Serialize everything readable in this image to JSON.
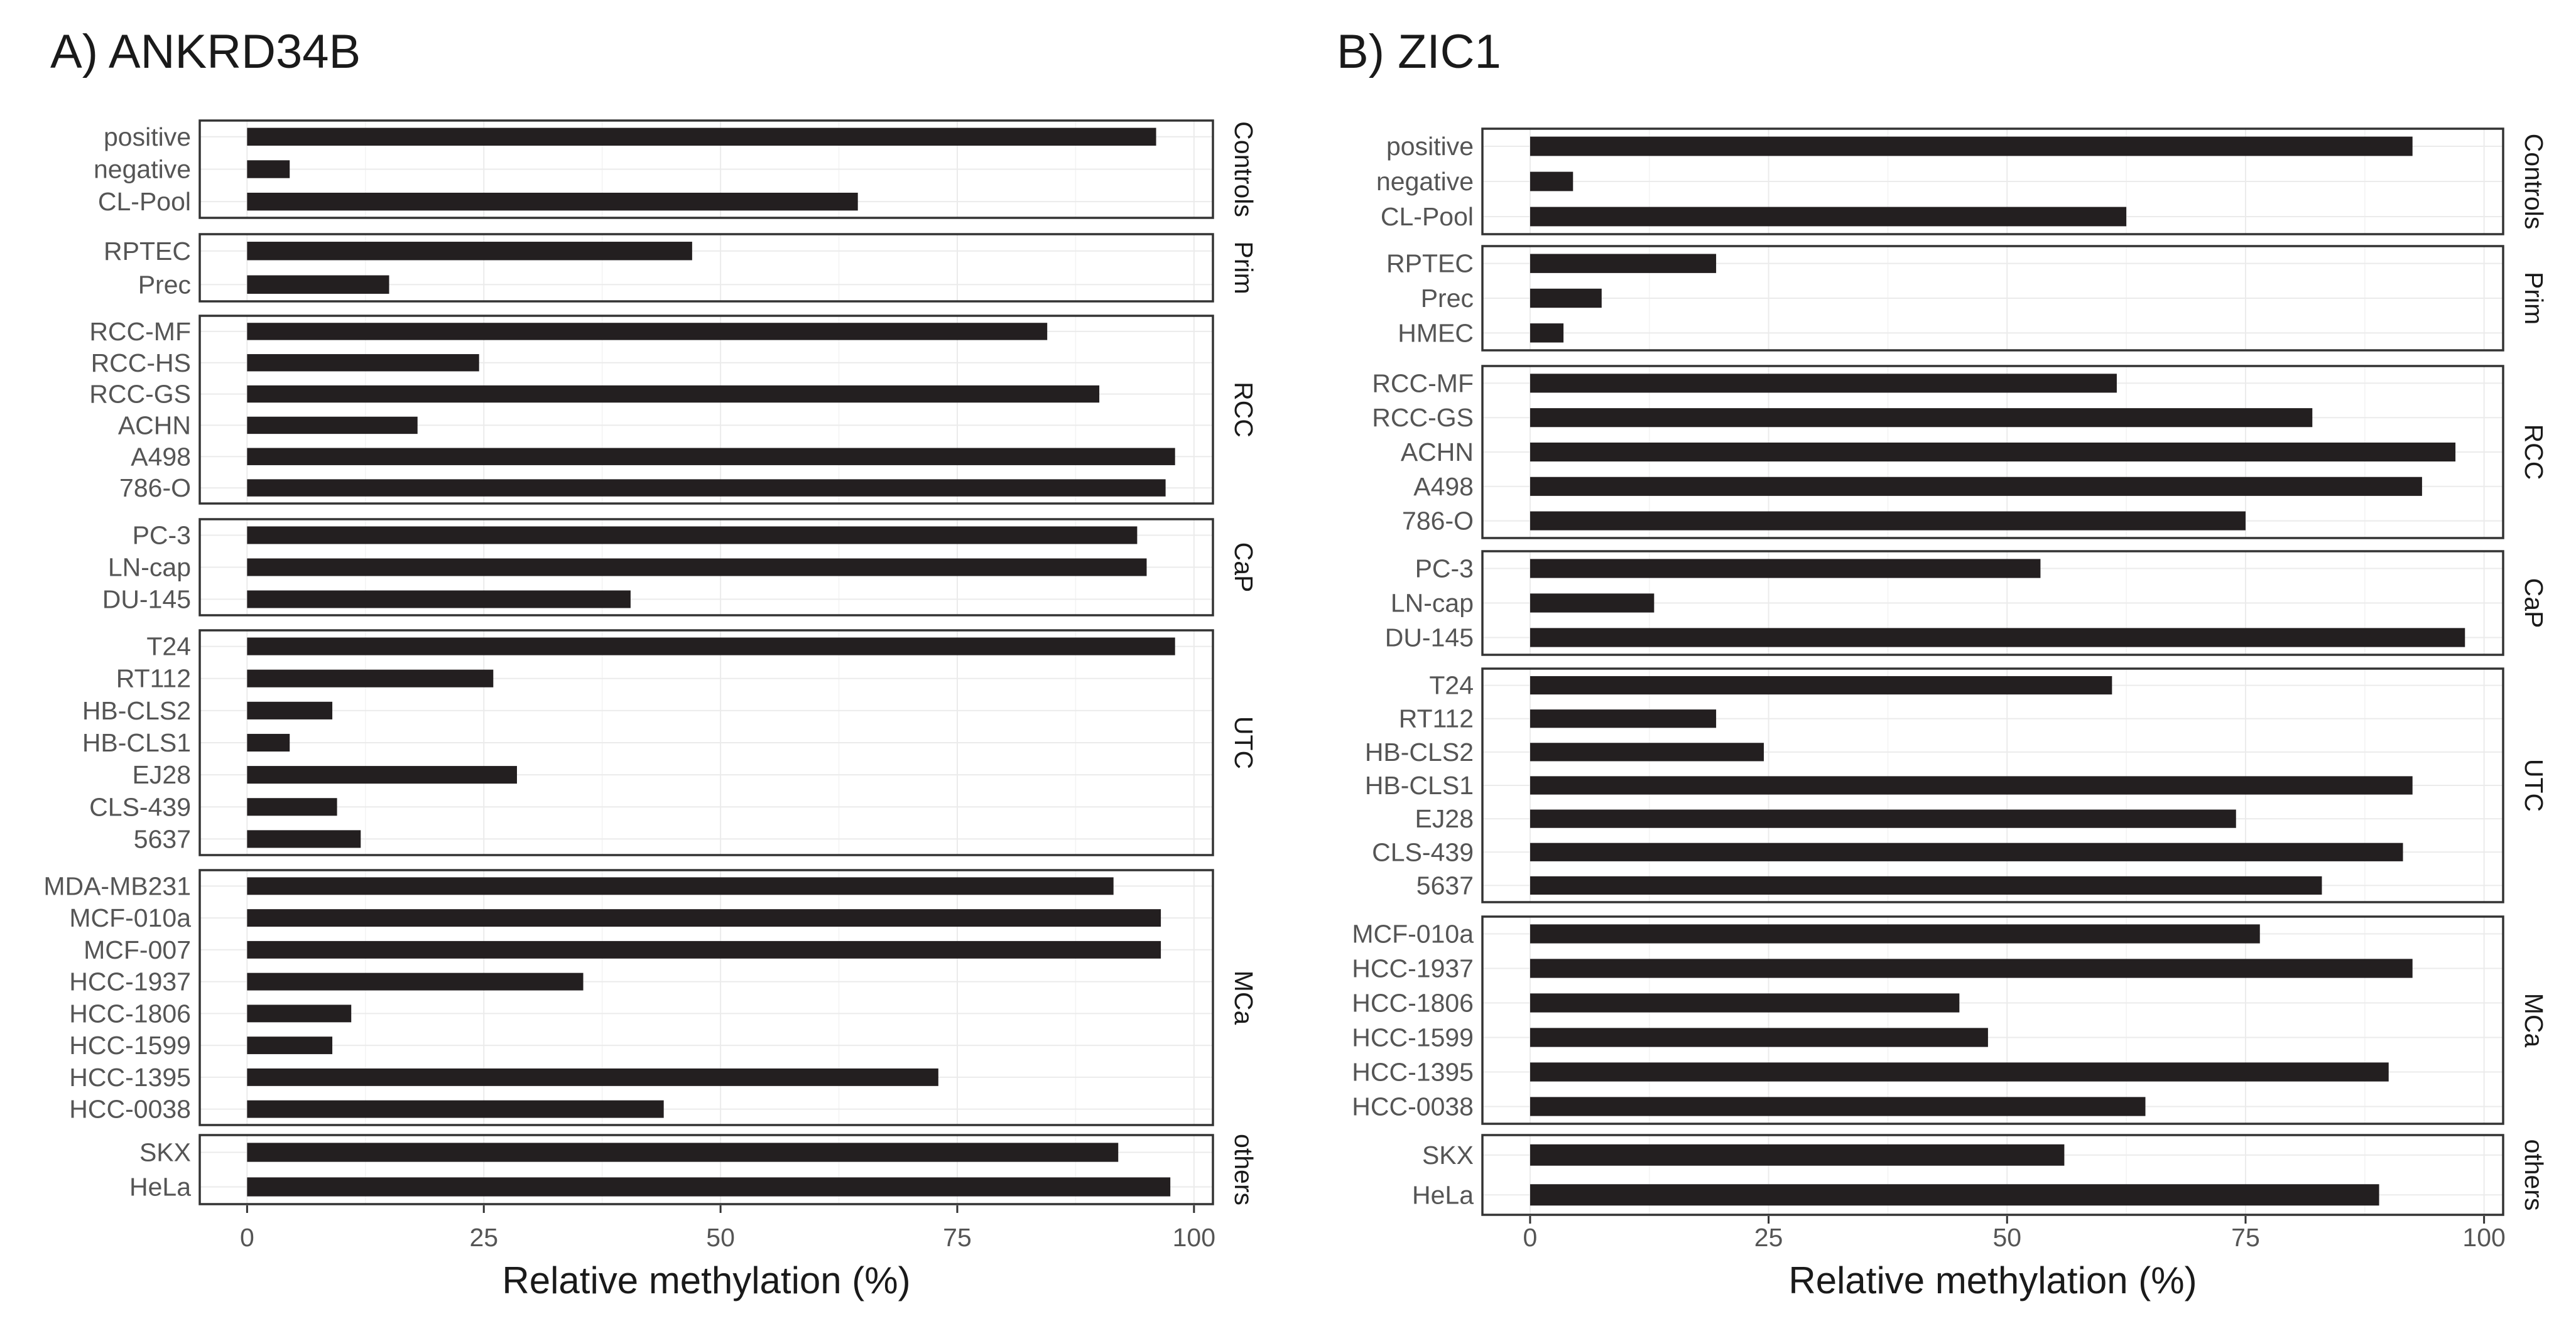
{
  "chart_data": [
    {
      "type": "bar",
      "orientation": "horizontal",
      "title": "A) ANKRD34B",
      "xlabel": "Relative methylation (%)",
      "ylabel": "",
      "xlim": [
        -5,
        102
      ],
      "xticks": [
        0,
        25,
        50,
        75,
        100
      ],
      "grid": true,
      "bar_color": "#231f20",
      "facets": [
        {
          "name": "Controls",
          "categories": [
            "positive",
            "negative",
            "CL-Pool"
          ],
          "values": [
            96,
            4.5,
            64.5
          ]
        },
        {
          "name": "Prim",
          "categories": [
            "RPTEC",
            "Prec"
          ],
          "values": [
            47,
            15
          ]
        },
        {
          "name": "RCC",
          "categories": [
            "RCC-MF",
            "RCC-HS",
            "RCC-GS",
            "ACHN",
            "A498",
            "786-O"
          ],
          "values": [
            84.5,
            24.5,
            90,
            18,
            98,
            97
          ]
        },
        {
          "name": "CaP",
          "categories": [
            "PC-3",
            "LN-cap",
            "DU-145"
          ],
          "values": [
            94,
            95,
            40.5
          ]
        },
        {
          "name": "UTC",
          "categories": [
            "T24",
            "RT112",
            "HB-CLS2",
            "HB-CLS1",
            "EJ28",
            "CLS-439",
            "5637"
          ],
          "values": [
            98,
            26,
            9,
            4.5,
            28.5,
            9.5,
            12
          ]
        },
        {
          "name": "MCa",
          "categories": [
            "MDA-MB231",
            "MCF-010a",
            "MCF-007",
            "HCC-1937",
            "HCC-1806",
            "HCC-1599",
            "HCC-1395",
            "HCC-0038"
          ],
          "values": [
            91.5,
            96.5,
            96.5,
            35.5,
            11,
            9,
            73,
            44
          ]
        },
        {
          "name": "others",
          "categories": [
            "SKX",
            "HeLa"
          ],
          "values": [
            92,
            97.5
          ]
        }
      ]
    },
    {
      "type": "bar",
      "orientation": "horizontal",
      "title": "B) ZIC1",
      "xlabel": "Relative methylation (%)",
      "ylabel": "",
      "xlim": [
        -5,
        102
      ],
      "xticks": [
        0,
        25,
        50,
        75,
        100
      ],
      "grid": true,
      "bar_color": "#231f20",
      "facets": [
        {
          "name": "Controls",
          "categories": [
            "positive",
            "negative",
            "CL-Pool"
          ],
          "values": [
            92.5,
            4.5,
            62.5
          ]
        },
        {
          "name": "Prim",
          "categories": [
            "RPTEC",
            "Prec",
            "HMEC"
          ],
          "values": [
            19.5,
            7.5,
            3.5
          ]
        },
        {
          "name": "RCC",
          "categories": [
            "RCC-MF",
            "RCC-GS",
            "ACHN",
            "A498",
            "786-O"
          ],
          "values": [
            61.5,
            82,
            97,
            93.5,
            75
          ]
        },
        {
          "name": "CaP",
          "categories": [
            "PC-3",
            "LN-cap",
            "DU-145"
          ],
          "values": [
            53.5,
            13,
            98
          ]
        },
        {
          "name": "UTC",
          "categories": [
            "T24",
            "RT112",
            "HB-CLS2",
            "HB-CLS1",
            "EJ28",
            "CLS-439",
            "5637"
          ],
          "values": [
            61,
            19.5,
            24.5,
            92.5,
            74,
            91.5,
            83
          ]
        },
        {
          "name": "MCa",
          "categories": [
            "MCF-010a",
            "HCC-1937",
            "HCC-1806",
            "HCC-1599",
            "HCC-1395",
            "HCC-0038"
          ],
          "values": [
            76.5,
            92.5,
            45,
            48,
            90,
            64.5
          ]
        },
        {
          "name": "others",
          "categories": [
            "SKX",
            "HeLa"
          ],
          "values": [
            56,
            89
          ]
        }
      ]
    }
  ]
}
